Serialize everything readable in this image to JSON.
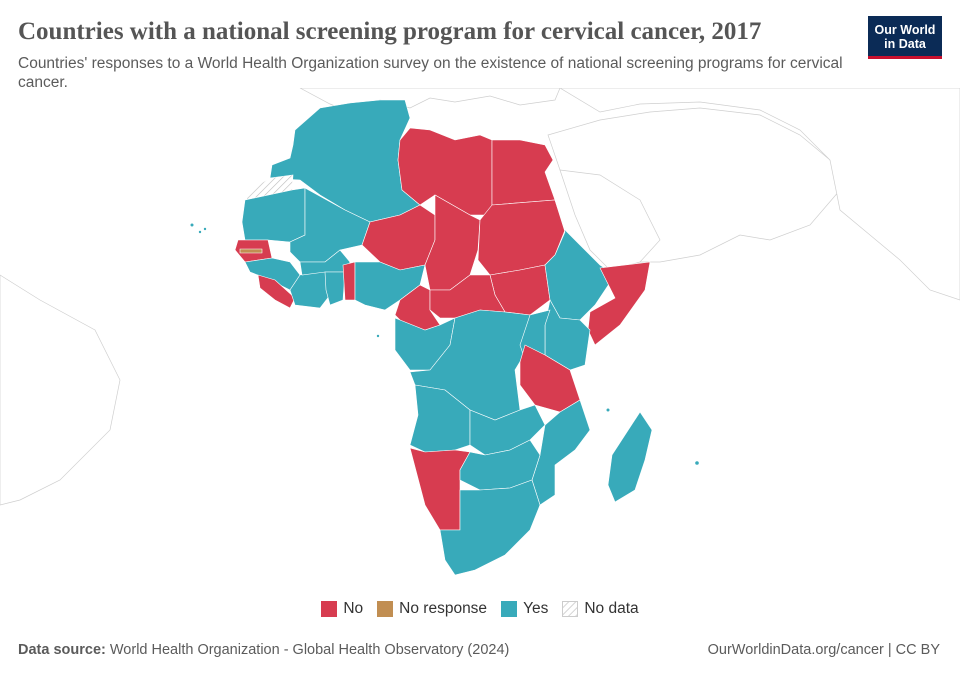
{
  "header": {
    "title": "Countries with a national screening program for cervical cancer, 2017",
    "subtitle": "Countries' responses to a World Health Organization survey on the existence of national screening programs for cervical cancer."
  },
  "logo": {
    "line1": "Our World",
    "line2": "in Data"
  },
  "legend": {
    "items": [
      {
        "label": "No",
        "color": "#d73c50"
      },
      {
        "label": "No response",
        "color": "#c18e52"
      },
      {
        "label": "Yes",
        "color": "#38aaba"
      },
      {
        "label": "No data",
        "color": "hatched"
      }
    ]
  },
  "footer": {
    "source_label": "Data source:",
    "source_text": "World Health Organization - Global Health Observatory (2024)",
    "url": "OurWorldinData.org/cancer | CC BY"
  },
  "map_data": {
    "year": "2017",
    "colors": {
      "No": "#d73c50",
      "No response": "#c18e52",
      "Yes": "#38aaba"
    },
    "countries": [
      {
        "name": "Morocco",
        "status": "Yes"
      },
      {
        "name": "Algeria",
        "status": "Yes"
      },
      {
        "name": "Tunisia",
        "status": "Yes"
      },
      {
        "name": "Libya",
        "status": "No"
      },
      {
        "name": "Egypt",
        "status": "No"
      },
      {
        "name": "Western Sahara",
        "status": "No data"
      },
      {
        "name": "Mauritania",
        "status": "Yes"
      },
      {
        "name": "Mali",
        "status": "Yes"
      },
      {
        "name": "Niger",
        "status": "No"
      },
      {
        "name": "Chad",
        "status": "No"
      },
      {
        "name": "Sudan",
        "status": "No"
      },
      {
        "name": "South Sudan",
        "status": "No"
      },
      {
        "name": "Eritrea",
        "status": "Yes"
      },
      {
        "name": "Ethiopia",
        "status": "Yes"
      },
      {
        "name": "Djibouti",
        "status": "Yes"
      },
      {
        "name": "Somalia",
        "status": "No"
      },
      {
        "name": "Senegal",
        "status": "No"
      },
      {
        "name": "Gambia",
        "status": "No response"
      },
      {
        "name": "Guinea-Bissau",
        "status": "Yes"
      },
      {
        "name": "Guinea",
        "status": "Yes"
      },
      {
        "name": "Sierra Leone",
        "status": "No"
      },
      {
        "name": "Liberia",
        "status": "No"
      },
      {
        "name": "Côte d'Ivoire",
        "status": "Yes"
      },
      {
        "name": "Burkina Faso",
        "status": "Yes"
      },
      {
        "name": "Ghana",
        "status": "Yes"
      },
      {
        "name": "Togo",
        "status": "No"
      },
      {
        "name": "Benin",
        "status": "No"
      },
      {
        "name": "Nigeria",
        "status": "Yes"
      },
      {
        "name": "Cameroon",
        "status": "No"
      },
      {
        "name": "Central African Republic",
        "status": "No"
      },
      {
        "name": "Equatorial Guinea",
        "status": "Yes"
      },
      {
        "name": "Gabon",
        "status": "Yes"
      },
      {
        "name": "Congo",
        "status": "Yes"
      },
      {
        "name": "Democratic Republic of Congo",
        "status": "Yes"
      },
      {
        "name": "Uganda",
        "status": "Yes"
      },
      {
        "name": "Kenya",
        "status": "Yes"
      },
      {
        "name": "Rwanda",
        "status": "Yes"
      },
      {
        "name": "Burundi",
        "status": "Yes"
      },
      {
        "name": "Tanzania",
        "status": "No"
      },
      {
        "name": "Angola",
        "status": "Yes"
      },
      {
        "name": "Zambia",
        "status": "Yes"
      },
      {
        "name": "Malawi",
        "status": "Yes"
      },
      {
        "name": "Mozambique",
        "status": "Yes"
      },
      {
        "name": "Namibia",
        "status": "No"
      },
      {
        "name": "Botswana",
        "status": "Yes"
      },
      {
        "name": "Zimbabwe",
        "status": "Yes"
      },
      {
        "name": "South Africa",
        "status": "Yes"
      },
      {
        "name": "Lesotho",
        "status": "Yes"
      },
      {
        "name": "Eswatini",
        "status": "Yes"
      },
      {
        "name": "Madagascar",
        "status": "Yes"
      },
      {
        "name": "Comoros",
        "status": "Yes"
      },
      {
        "name": "Mauritius",
        "status": "Yes"
      },
      {
        "name": "Cape Verde",
        "status": "Yes"
      }
    ]
  }
}
